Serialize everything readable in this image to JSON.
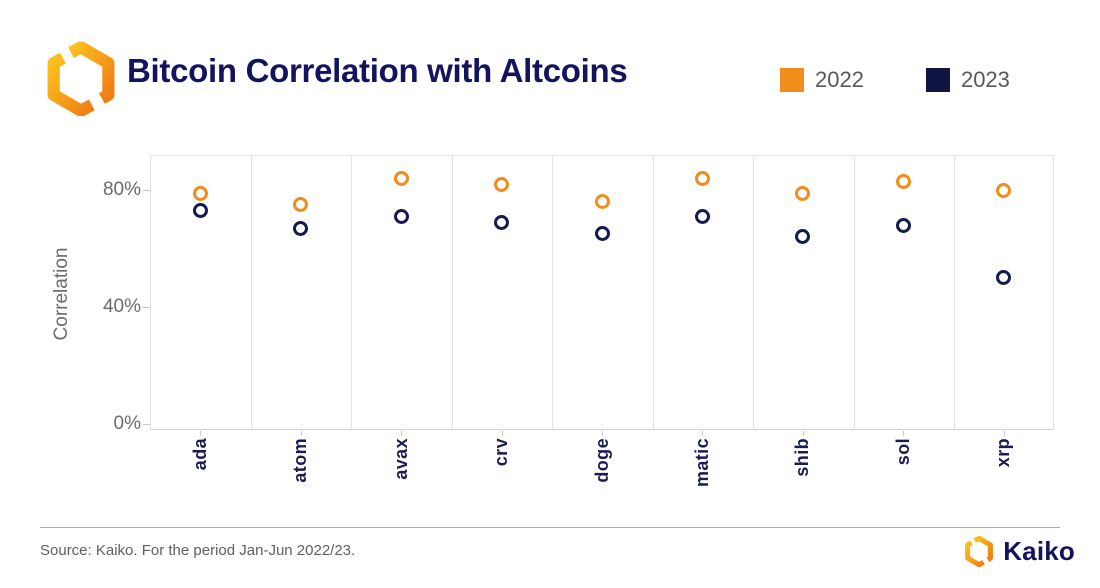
{
  "header": {
    "title": "Bitcoin Correlation with Altcoins",
    "legend": [
      {
        "label": "2022",
        "color": "#F18C1D"
      },
      {
        "label": "2023",
        "color": "#101443"
      }
    ]
  },
  "chart_data": {
    "type": "scatter",
    "categories": [
      "ada",
      "atom",
      "avax",
      "crv",
      "doge",
      "matic",
      "shib",
      "sol",
      "xrp"
    ],
    "series": [
      {
        "name": "2022",
        "color": "#F18C1D",
        "values": [
          79,
          75,
          84,
          82,
          76,
          84,
          79,
          83,
          80
        ]
      },
      {
        "name": "2023",
        "color": "#141B4F",
        "values": [
          73,
          67,
          71,
          69,
          65,
          71,
          64,
          68,
          50
        ]
      }
    ],
    "title": "Bitcoin Correlation with Altcoins",
    "xlabel": "",
    "ylabel": "Correlation",
    "yticks": [
      {
        "value": 0,
        "label": "0%"
      },
      {
        "value": 40,
        "label": "40%"
      },
      {
        "value": 80,
        "label": "80%"
      }
    ],
    "ylim": [
      -2,
      92
    ],
    "grid": "vertical-only",
    "legend_position": "top-right",
    "marker_style": "open-circle"
  },
  "footer": {
    "source_text": "Source: Kaiko. For the period Jan-Jun 2022/23.",
    "brand_name": "Kaiko"
  },
  "icons": {
    "brand_icon": "kaiko-hexagon-icon",
    "gradient_start": "#FCC11E",
    "gradient_end": "#EF7D14"
  }
}
